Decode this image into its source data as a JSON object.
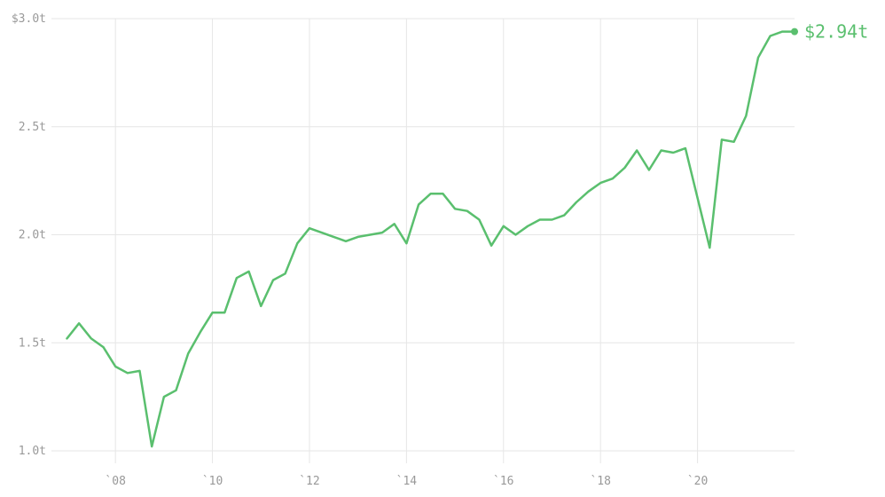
{
  "chart_data": {
    "type": "line",
    "title": "",
    "xlabel": "",
    "ylabel": "",
    "color": "#5abf6e",
    "grid": true,
    "xlim": [
      2006.9,
      2022.0
    ],
    "ylim": [
      1.0,
      3.0
    ],
    "y_ticks": [
      {
        "value": 3.0,
        "label": "$3.0t"
      },
      {
        "value": 2.5,
        "label": "2.5t"
      },
      {
        "value": 2.0,
        "label": "2.0t"
      },
      {
        "value": 1.5,
        "label": "1.5t"
      },
      {
        "value": 1.0,
        "label": "1.0t"
      }
    ],
    "x_ticks": [
      {
        "value": 2008,
        "label": "`08"
      },
      {
        "value": 2010,
        "label": "`10"
      },
      {
        "value": 2012,
        "label": "`12"
      },
      {
        "value": 2014,
        "label": "`14"
      },
      {
        "value": 2016,
        "label": "`16"
      },
      {
        "value": 2018,
        "label": "`18"
      },
      {
        "value": 2020,
        "label": "`20"
      }
    ],
    "end_label": "$2.94t",
    "series": [
      {
        "x": [
          2007.0,
          2007.25,
          2007.5,
          2007.75,
          2008.0,
          2008.25,
          2008.5,
          2008.75,
          2009.0,
          2009.25,
          2009.5,
          2009.75,
          2010.0,
          2010.25,
          2010.5,
          2010.75,
          2011.0,
          2011.25,
          2011.5,
          2011.75,
          2012.0,
          2012.25,
          2012.5,
          2012.75,
          2013.0,
          2013.25,
          2013.5,
          2013.75,
          2014.0,
          2014.25,
          2014.5,
          2014.75,
          2015.0,
          2015.25,
          2015.5,
          2015.75,
          2016.0,
          2016.25,
          2016.5,
          2016.75,
          2017.0,
          2017.25,
          2017.5,
          2017.75,
          2018.0,
          2018.25,
          2018.5,
          2018.75,
          2019.0,
          2019.25,
          2019.5,
          2019.75,
          2020.0,
          2020.25,
          2020.5,
          2020.75,
          2021.0,
          2021.25,
          2021.5,
          2021.75,
          2022.0
        ],
        "values": [
          1.52,
          1.59,
          1.52,
          1.48,
          1.39,
          1.36,
          1.37,
          1.02,
          1.25,
          1.28,
          1.45,
          1.55,
          1.64,
          1.64,
          1.8,
          1.83,
          1.67,
          1.79,
          1.82,
          1.96,
          2.03,
          2.01,
          1.99,
          1.97,
          1.99,
          2.0,
          2.01,
          2.05,
          1.96,
          2.14,
          2.19,
          2.19,
          2.12,
          2.11,
          2.07,
          1.95,
          2.04,
          2.0,
          2.04,
          2.07,
          2.07,
          2.09,
          2.15,
          2.2,
          2.24,
          2.26,
          2.31,
          2.39,
          2.3,
          2.39,
          2.38,
          2.4,
          2.17,
          1.94,
          2.44,
          2.43,
          2.55,
          2.82,
          2.92,
          2.94,
          2.94
        ]
      }
    ]
  }
}
